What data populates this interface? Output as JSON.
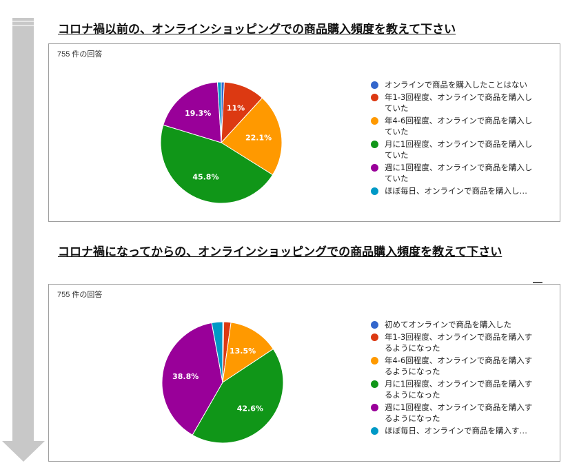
{
  "charts": [
    {
      "title": "コロナ禍以前の、オンラインショッピングでの商品購入頻度を教えて下さい",
      "response_count": "755 件の回答",
      "legend": [
        "オンラインで商品を購入したことはない",
        "年1-3回程度、オンラインで商品を購入していた",
        "年4-6回程度、オンラインで商品を購入していた",
        "月に1回程度、オンラインで商品を購入していた",
        "週に1回程度、オンラインで商品を購入していた",
        "ほぼ毎日、オンラインで商品を購入し…"
      ]
    },
    {
      "title": "コロナ禍になってからの、オンラインショッピングでの商品購入頻度を教えて下さい",
      "response_count": "755 件の回答",
      "legend": [
        "初めてオンラインで商品を購入した",
        "年1-3回程度、オンラインで商品を購入するようになった",
        "年4-6回程度、オンラインで商品を購入するようになった",
        "月に1回程度、オンラインで商品を購入するようになった",
        "週に1回程度、オンラインで商品を購入するようになった",
        "ほぼ毎日、オンラインで商品を購入す…"
      ]
    }
  ],
  "colors": [
    "#3366cc",
    "#dc3912",
    "#ff9900",
    "#109618",
    "#990099",
    "#0099c6"
  ],
  "chart_data": [
    {
      "type": "pie",
      "title": "コロナ禍以前の、オンラインショッピングでの商品購入頻度を教えて下さい",
      "categories": [
        "オンラインで商品を購入したことはない",
        "年1-3回程度、オンラインで商品を購入していた",
        "年4-6回程度、オンラインで商品を購入していた",
        "月に1回程度、オンラインで商品を購入していた",
        "週に1回程度、オンラインで商品を購入していた",
        "ほぼ毎日、オンラインで商品を購入していた"
      ],
      "values": [
        0.8,
        11.0,
        22.1,
        45.8,
        19.3,
        1.0
      ],
      "data_labels": [
        "",
        "11%",
        "22.1%",
        "45.8%",
        "19.3%",
        ""
      ],
      "start_angle_deg": 90,
      "direction": "clockwise",
      "legend_position": "right"
    },
    {
      "type": "pie",
      "title": "コロナ禍になってからの、オンラインショッピングでの商品購入頻度を教えて下さい",
      "categories": [
        "初めてオンラインで商品を購入した",
        "年1-3回程度、オンラインで商品を購入するようになった",
        "年4-6回程度、オンラインで商品を購入するようになった",
        "月に1回程度、オンラインで商品を購入するようになった",
        "週に1回程度、オンラインで商品を購入するようになった",
        "ほぼ毎日、オンラインで商品を購入するようになった"
      ],
      "values": [
        0.3,
        1.9,
        13.5,
        42.6,
        38.8,
        2.9
      ],
      "data_labels": [
        "",
        "",
        "13.5%",
        "42.6%",
        "38.8%",
        ""
      ],
      "start_angle_deg": 90,
      "direction": "clockwise",
      "legend_position": "right"
    }
  ]
}
